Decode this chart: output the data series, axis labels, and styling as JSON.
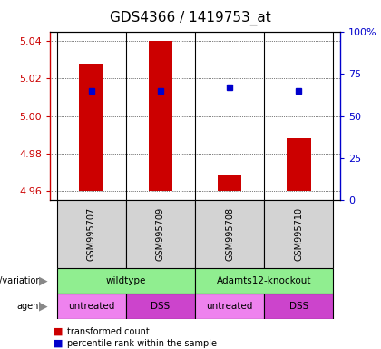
{
  "title": "GDS4366 / 1419753_at",
  "samples": [
    "GSM995707",
    "GSM995709",
    "GSM995708",
    "GSM995710"
  ],
  "bar_values": [
    5.028,
    5.04,
    4.968,
    4.988
  ],
  "bar_base": 4.96,
  "percentile_pct": [
    65,
    65,
    67,
    65
  ],
  "ylim_left": [
    4.955,
    5.045
  ],
  "yticks_left": [
    4.96,
    4.98,
    5.0,
    5.02,
    5.04
  ],
  "ylim_right": [
    0,
    100
  ],
  "yticks_right": [
    0,
    25,
    50,
    75,
    100
  ],
  "yticklabels_right": [
    "0",
    "25",
    "50",
    "75",
    "100%"
  ],
  "bar_color": "#cc0000",
  "sq_color": "#0000cc",
  "bar_width": 0.35,
  "agent": [
    "untreated",
    "DSS",
    "untreated",
    "DSS"
  ],
  "untreated_color": "#ee82ee",
  "dss_color": "#cc44cc",
  "green_color": "#90ee90",
  "sample_bg_color": "#d3d3d3",
  "legend_red_label": "transformed count",
  "legend_blue_label": "percentile rank within the sample",
  "tick_color_left": "#cc0000",
  "tick_color_right": "#0000cc"
}
